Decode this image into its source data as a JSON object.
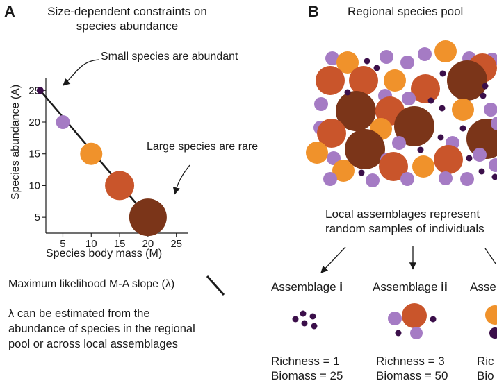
{
  "panel_a": {
    "letter": "A",
    "title_line1": "Size-dependent constraints on",
    "title_line2": "species abundance",
    "annotation_small": "Small species are abundant",
    "annotation_large": "Large species are rare",
    "x_axis_label": "Species body mass (M)",
    "y_axis_label": "Species abundance (A)",
    "slope_label": "Maximum likelihood M-A slope (λ)",
    "note_line1": "λ can be estimated from the",
    "note_line2": "abundance of species in the regional",
    "note_line3": "pool or across local assemblages"
  },
  "panel_b": {
    "letter": "B",
    "title": "Regional species pool",
    "local_line1": "Local assemblages represent",
    "local_line2": "random samples of individuals",
    "assemblages": [
      {
        "label": "Assemblage ",
        "numeral": "i",
        "richness": "Richness = 1",
        "biomass": "Biomass  = 25"
      },
      {
        "label": "Assemblage ",
        "numeral": "ii",
        "richness": "Richness = 3",
        "biomass": "Biomass  = 50"
      },
      {
        "label": "Asse",
        "numeral": "",
        "richness": "Ric",
        "biomass": "Bio"
      }
    ]
  },
  "chart_data": {
    "type": "scatter",
    "xlabel": "Species body mass (M)",
    "ylabel": "Species abundance (A)",
    "x_ticks": [
      5,
      10,
      15,
      20,
      25
    ],
    "y_ticks": [
      5,
      10,
      15,
      20,
      25
    ],
    "xlim": [
      2,
      27
    ],
    "ylim": [
      2.5,
      27
    ],
    "points": [
      {
        "x": 1,
        "y": 25,
        "color": "#3b0f4a"
      },
      {
        "x": 5,
        "y": 20,
        "color": "#a57bc4"
      },
      {
        "x": 10,
        "y": 15,
        "color": "#f0922b"
      },
      {
        "x": 15,
        "y": 10,
        "color": "#c9552b"
      },
      {
        "x": 20,
        "y": 5,
        "color": "#7b3519"
      }
    ],
    "fit_line": {
      "x": [
        1,
        20
      ],
      "y": [
        25,
        5
      ]
    }
  },
  "colors": {
    "tiny": "#3b0f4a",
    "small": "#a57bc4",
    "medium": "#f0922b",
    "large": "#c9552b",
    "xlarge": "#7b3519"
  }
}
